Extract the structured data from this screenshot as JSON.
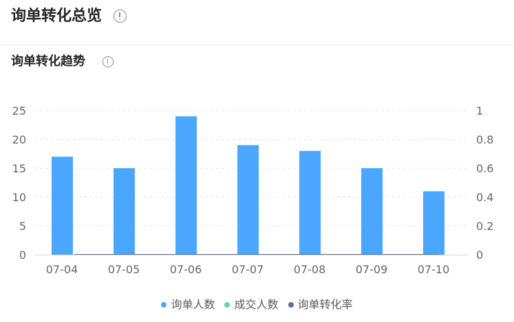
{
  "header": {
    "title": "询单转化总览"
  },
  "section": {
    "title": "询单转化趋势"
  },
  "chart_data": {
    "type": "bar",
    "categories": [
      "07-04",
      "07-05",
      "07-06",
      "07-07",
      "07-08",
      "07-09",
      "07-10"
    ],
    "series": [
      {
        "name": "询单人数",
        "type": "bar",
        "axis": "left",
        "color": "#4ba6ff",
        "values": [
          17,
          15,
          24,
          19,
          18,
          15,
          11
        ]
      },
      {
        "name": "成交人数",
        "type": "bar",
        "axis": "left",
        "color": "#5ad8a6",
        "values": [
          0,
          0,
          0,
          0,
          0,
          0,
          0
        ]
      },
      {
        "name": "询单转化率",
        "type": "line",
        "axis": "right",
        "color": "#5b7194",
        "values": [
          0,
          0,
          0,
          0,
          0,
          0,
          0
        ]
      }
    ],
    "yTicks": [
      "0",
      "5",
      "10",
      "15",
      "20",
      "25"
    ],
    "y2Ticks": [
      "0",
      "0.2",
      "0.4",
      "0.6",
      "0.8",
      "1"
    ],
    "ylim": [
      0,
      25
    ],
    "y2lim": [
      0,
      1
    ],
    "grid": true,
    "legend_position": "bottom"
  }
}
